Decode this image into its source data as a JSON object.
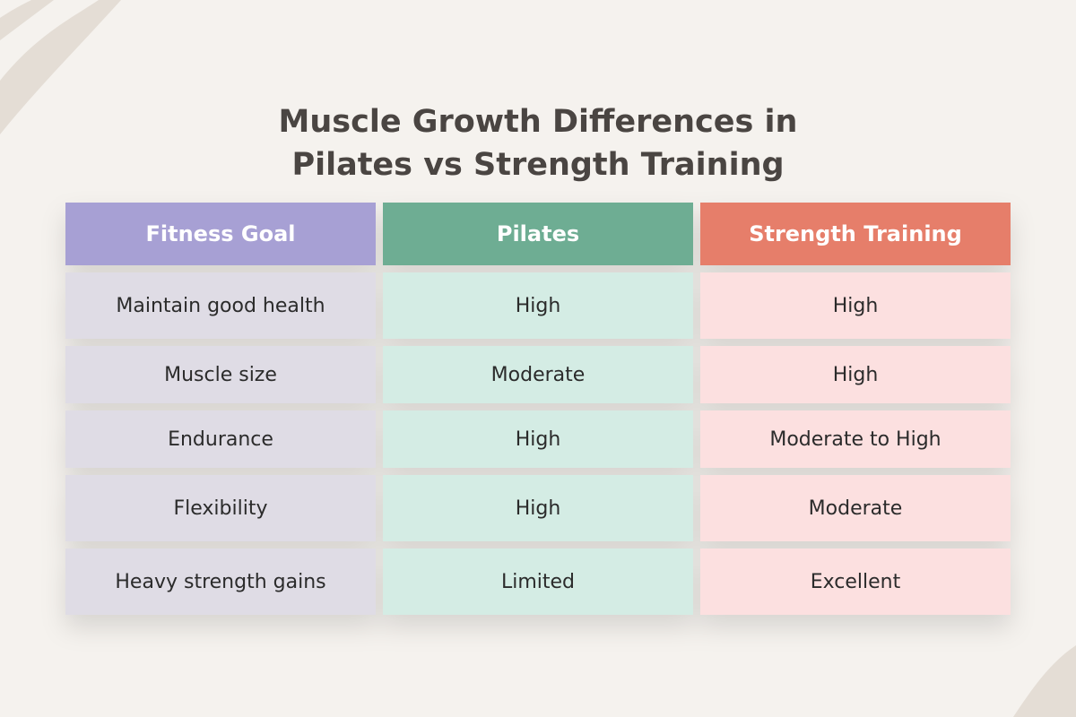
{
  "title": {
    "line1": "Muscle Growth Differences in",
    "line2": "Pilates vs Strength Training"
  },
  "table": {
    "header": [
      "Fitness Goal",
      "Pilates",
      "Strength Training"
    ],
    "rows": [
      [
        "Maintain good health",
        "High",
        "High"
      ],
      [
        "Muscle size",
        "Moderate",
        "High"
      ],
      [
        "Endurance",
        "High",
        "Moderate to High"
      ],
      [
        "Flexibility",
        "High",
        "Moderate"
      ],
      [
        "Heavy strength gains",
        "Limited",
        "Excellent"
      ]
    ]
  }
}
